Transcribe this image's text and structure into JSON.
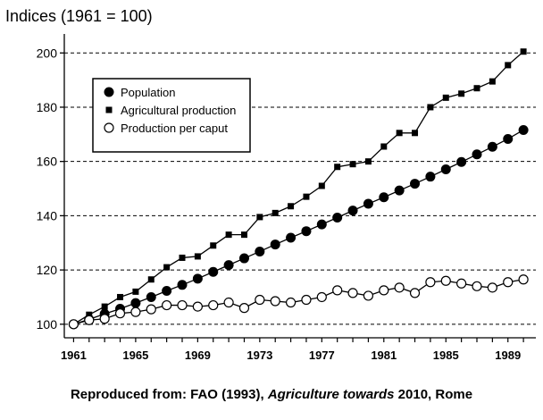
{
  "chart_data": {
    "type": "line",
    "title": "",
    "ylabel": "Indices (1961 = 100)",
    "xlabel": "",
    "xlim": [
      1960.4,
      1990.8
    ],
    "ylim": [
      95,
      207
    ],
    "x_ticks": [
      1961,
      1965,
      1969,
      1973,
      1977,
      1981,
      1985,
      1989
    ],
    "y_ticks": [
      100,
      120,
      140,
      160,
      180,
      200
    ],
    "grid": "horizontal dashed",
    "legend_position": "top-left",
    "x": [
      1961,
      1962,
      1963,
      1964,
      1965,
      1966,
      1967,
      1968,
      1969,
      1970,
      1971,
      1972,
      1973,
      1974,
      1975,
      1976,
      1977,
      1978,
      1979,
      1980,
      1981,
      1982,
      1983,
      1984,
      1985,
      1986,
      1987,
      1988,
      1989,
      1990
    ],
    "series": [
      {
        "name": "Population",
        "marker": "filled-circle",
        "values": [
          100,
          101.8,
          103.8,
          105.7,
          107.8,
          110.0,
          112.3,
          114.5,
          116.8,
          119.3,
          121.8,
          124.3,
          126.8,
          129.4,
          131.9,
          134.3,
          136.8,
          139.3,
          141.9,
          144.4,
          146.8,
          149.3,
          151.8,
          154.4,
          157.1,
          159.8,
          162.6,
          165.4,
          168.3,
          171.6
        ]
      },
      {
        "name": "Agricultural production",
        "marker": "filled-square",
        "values": [
          100,
          103.5,
          106.5,
          110.0,
          112.0,
          116.5,
          121.0,
          124.5,
          125.0,
          129.0,
          133.0,
          133.0,
          139.5,
          141.0,
          143.5,
          147.0,
          151.0,
          158.0,
          159.0,
          160.0,
          165.5,
          170.5,
          170.5,
          180.0,
          183.5,
          185.0,
          187.0,
          189.5,
          195.5,
          200.5
        ]
      },
      {
        "name": "Production per caput",
        "marker": "open-circle",
        "values": [
          100,
          101.5,
          102.0,
          104.0,
          104.5,
          105.5,
          107.0,
          107.0,
          106.5,
          107.0,
          108.0,
          106.0,
          109.0,
          108.5,
          108.0,
          109.0,
          110.0,
          112.5,
          111.5,
          110.5,
          112.5,
          113.5,
          111.5,
          115.5,
          116.0,
          115.0,
          114.0,
          113.5,
          115.5,
          116.5
        ]
      }
    ]
  },
  "caption": {
    "prefix": "Reproduced from: FAO (1993), ",
    "italic": "Agriculture towards",
    "suffix": " 2010, Rome"
  }
}
